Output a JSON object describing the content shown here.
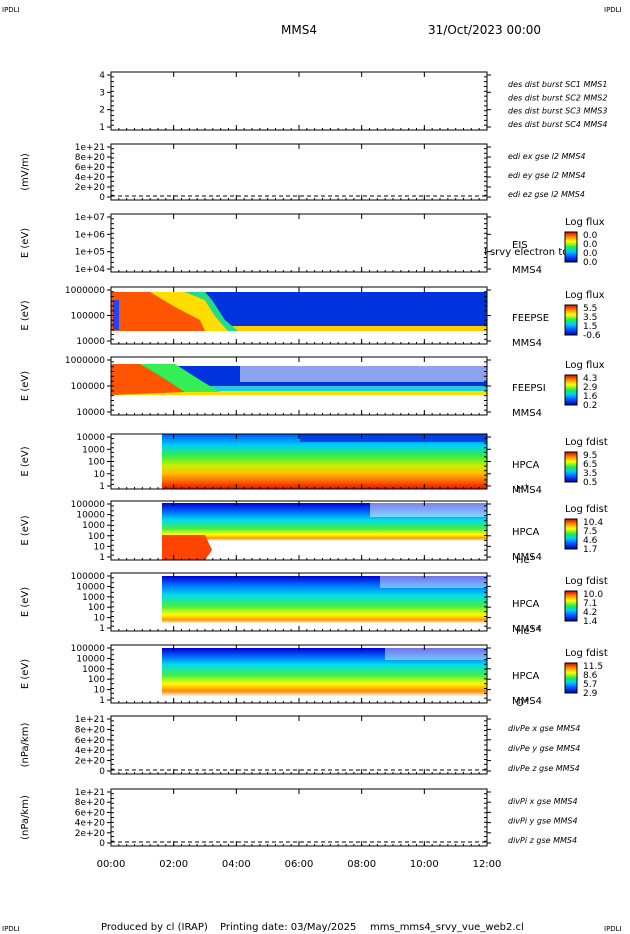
{
  "header": {
    "corner_tl": "IPDLI",
    "corner_tr": "IPDLI",
    "corner_bl": "IPDLI",
    "corner_br": "IPDLI",
    "spacecraft": "MMS4",
    "date": "31/Oct/2023 00:00"
  },
  "footer": {
    "produced_by": "Produced by cl (IRAP)",
    "printing_date": "Printing date: 03/May/2025",
    "script_name": "mms_mms4_srvy_vue_web2.cl"
  },
  "chart_data": {
    "type": "heatmap",
    "x_axis": {
      "ticks": [
        "00:00",
        "02:00",
        "04:00",
        "06:00",
        "08:00",
        "10:00",
        "12:00"
      ],
      "range_hours": [
        0,
        12
      ]
    },
    "panels": [
      {
        "id": "burst",
        "ylabel": "",
        "yticks": [
          "4",
          "3",
          "2",
          "1"
        ],
        "legend": [
          {
            "text": "des dist burst SC1 MMS1",
            "color": "#0000cc"
          },
          {
            "text": "des dist burst SC2 MMS2",
            "color": "#dd00dd"
          },
          {
            "text": "des dist burst SC3 MMS3",
            "color": "#dd0000"
          },
          {
            "text": "des dist burst SC4 MMS4",
            "color": "#22bb22"
          }
        ]
      },
      {
        "id": "edi",
        "ylabel": "(mV/m)",
        "yticks": [
          "1e+21",
          "8e+20",
          "6e+20",
          "4e+20",
          "2e+20",
          "0"
        ],
        "legend": [
          {
            "text": "edi ex gse l2 MMS4",
            "color": "#dd0000"
          },
          {
            "text": "edi ey gse l2 MMS4",
            "color": "#22bb22"
          },
          {
            "text": "edi ez gse l2 MMS4",
            "color": "#0000cc"
          }
        ]
      },
      {
        "id": "eis",
        "ylabel": "E (eV)",
        "yticks": [
          "1e+07",
          "1e+06",
          "1e+05",
          "1e+04"
        ],
        "label": "EIS",
        "sublabel": "MMS4",
        "overlay_text": "l srvy electron to",
        "cbar_title": "Log flux",
        "cbar_ticks": [
          "0.0",
          "0.0",
          "0.0",
          "0.0"
        ]
      },
      {
        "id": "feepse",
        "ylabel": "E (eV)",
        "yticks": [
          "1000000",
          "100000",
          "10000"
        ],
        "label": "FEEPSE",
        "sublabel": "MMS4",
        "cbar_title": "Log flux",
        "cbar_ticks": [
          "5.5",
          "3.5",
          "1.5",
          "-0.6"
        ]
      },
      {
        "id": "feepsi",
        "ylabel": "E (eV)",
        "yticks": [
          "1000000",
          "100000",
          "10000"
        ],
        "label": "FEEPSI",
        "sublabel": "MMS4",
        "cbar_title": "Log flux",
        "cbar_ticks": [
          "4.3",
          "2.9",
          "1.6",
          "0.2"
        ]
      },
      {
        "id": "hpca-h",
        "ylabel": "E (eV)",
        "yticks": [
          "10000",
          "1000",
          "100",
          "10",
          "1"
        ],
        "label": "HPCA",
        "sublabel": "MMS4",
        "species": "H",
        "species_sup": "+",
        "cbar_title": "Log fdist",
        "cbar_ticks": [
          "9.5",
          "6.5",
          "3.5",
          "0.5"
        ]
      },
      {
        "id": "hpca-he1",
        "ylabel": "E (eV)",
        "yticks": [
          "100000",
          "10000",
          "1000",
          "100",
          "10",
          "1"
        ],
        "label": "HPCA",
        "sublabel": "MMS4",
        "species": "He",
        "species_sup": "+",
        "cbar_title": "Log fdist",
        "cbar_ticks": [
          "10.4",
          "7.5",
          "4.6",
          "1.7"
        ]
      },
      {
        "id": "hpca-he2",
        "ylabel": "E (eV)",
        "yticks": [
          "100000",
          "10000",
          "1000",
          "100",
          "10",
          "1"
        ],
        "label": "HPCA",
        "sublabel": "MMS4",
        "species": "He",
        "species_sup": "++",
        "cbar_title": "Log fdist",
        "cbar_ticks": [
          "10.0",
          "7.1",
          "4.2",
          "1.4"
        ]
      },
      {
        "id": "hpca-o",
        "ylabel": "E (eV)",
        "yticks": [
          "100000",
          "10000",
          "1000",
          "100",
          "10",
          "1"
        ],
        "label": "HPCA",
        "sublabel": "MMS4",
        "species": "O",
        "species_sup": "+",
        "cbar_title": "Log fdist",
        "cbar_ticks": [
          "11.5",
          "8.6",
          "5.7",
          "2.9"
        ]
      },
      {
        "id": "divpe",
        "ylabel": "(nPa/km)",
        "yticks": [
          "1e+21",
          "8e+20",
          "6e+20",
          "4e+20",
          "2e+20",
          "0"
        ],
        "legend": [
          {
            "text": "divPe x gse MMS4",
            "color": "#dd0000"
          },
          {
            "text": "divPe y gse MMS4",
            "color": "#22bb22"
          },
          {
            "text": "divPe z gse MMS4",
            "color": "#0000cc"
          }
        ]
      },
      {
        "id": "divpi",
        "ylabel": "(nPa/km)",
        "yticks": [
          "1e+21",
          "8e+20",
          "6e+20",
          "4e+20",
          "2e+20",
          "0"
        ],
        "legend": [
          {
            "text": "divPi x gse MMS4",
            "color": "#dd0000"
          },
          {
            "text": "divPi y gse MMS4",
            "color": "#22bb22"
          },
          {
            "text": "divPi z gse MMS4",
            "color": "#0000cc"
          }
        ]
      }
    ]
  }
}
